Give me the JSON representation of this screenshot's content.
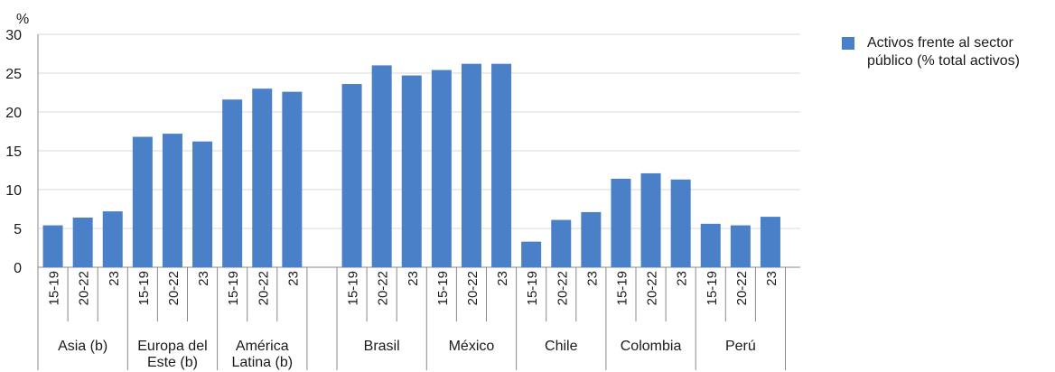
{
  "chart_data": {
    "type": "bar",
    "title": "",
    "xlabel": "",
    "ylabel": "%",
    "ylim": [
      0,
      30
    ],
    "yticks": [
      0,
      5,
      10,
      15,
      20,
      25,
      30
    ],
    "grid": true,
    "legend_position": "top-right",
    "colors": {
      "bar": "#4a80c8",
      "grid": "#d9d9d9",
      "axis": "#888888"
    },
    "groups": [
      {
        "label": "Asia (b)",
        "categories": [
          "15-19",
          "20-22",
          "23"
        ],
        "values": [
          5.4,
          6.4,
          7.2
        ]
      },
      {
        "label": "Europa del Este (b)",
        "categories": [
          "15-19",
          "20-22",
          "23"
        ],
        "values": [
          16.8,
          17.2,
          16.2
        ]
      },
      {
        "label": "América Latina (b)",
        "categories": [
          "15-19",
          "20-22",
          "23"
        ],
        "values": [
          21.6,
          23.0,
          22.6
        ]
      },
      {
        "label": "Brasil",
        "categories": [
          "15-19",
          "20-22",
          "23"
        ],
        "values": [
          23.6,
          26.0,
          24.7
        ]
      },
      {
        "label": "México",
        "categories": [
          "15-19",
          "20-22",
          "23"
        ],
        "values": [
          25.4,
          26.2,
          26.2
        ]
      },
      {
        "label": "Chile",
        "categories": [
          "15-19",
          "20-22",
          "23"
        ],
        "values": [
          3.3,
          6.1,
          7.1
        ]
      },
      {
        "label": "Colombia",
        "categories": [
          "15-19",
          "20-22",
          "23"
        ],
        "values": [
          11.4,
          12.1,
          11.3
        ]
      },
      {
        "label": "Perú",
        "categories": [
          "15-19",
          "20-22",
          "23"
        ],
        "values": [
          5.6,
          5.4,
          6.5
        ]
      }
    ],
    "series": [
      {
        "name": "Activos frente al sector público (% total activos)",
        "color": "#4a80c8"
      }
    ]
  }
}
